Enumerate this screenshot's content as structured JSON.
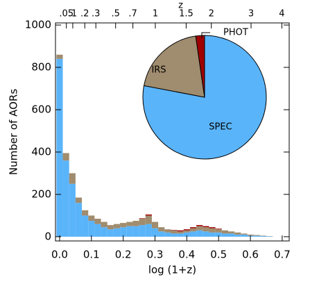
{
  "chart_data": [
    {
      "type": "histogram",
      "xlabel": "log (1+z)",
      "ylabel": "Number of AORs",
      "x2label": "z",
      "bins": [
        -0.01,
        0.01,
        0.03,
        0.05,
        0.07,
        0.09,
        0.11,
        0.13,
        0.15,
        0.17,
        0.19,
        0.21,
        0.23,
        0.25,
        0.27,
        0.29,
        0.31,
        0.33,
        0.35,
        0.37,
        0.39,
        0.41,
        0.43,
        0.45,
        0.47,
        0.49,
        0.51,
        0.53,
        0.55,
        0.57,
        0.59,
        0.61,
        0.63,
        0.65,
        0.67,
        0.69
      ],
      "stacked": true,
      "series": [
        {
          "name": "SPEC",
          "color": "#5ab4fa",
          "values": [
            840,
            360,
            250,
            160,
            100,
            75,
            60,
            45,
            35,
            40,
            45,
            50,
            50,
            55,
            60,
            40,
            25,
            20,
            15,
            15,
            20,
            25,
            30,
            25,
            20,
            20,
            15,
            15,
            10,
            10,
            5,
            5,
            3,
            2,
            0
          ]
        },
        {
          "name": "IRS",
          "color": "#a08c6e",
          "values": [
            20,
            35,
            50,
            25,
            25,
            25,
            25,
            25,
            20,
            20,
            20,
            20,
            25,
            30,
            40,
            30,
            20,
            15,
            15,
            10,
            10,
            15,
            20,
            20,
            20,
            15,
            15,
            10,
            10,
            5,
            5,
            3,
            2,
            1,
            0
          ]
        },
        {
          "name": "PHOT",
          "color": "#a00000",
          "values": [
            0,
            0,
            0,
            0,
            0,
            0,
            0,
            0,
            0,
            0,
            0,
            0,
            0,
            2,
            5,
            0,
            0,
            0,
            2,
            5,
            5,
            5,
            5,
            5,
            5,
            3,
            0,
            0,
            0,
            0,
            0,
            0,
            0,
            0,
            0
          ]
        }
      ],
      "xlim": [
        -0.013,
        0.722
      ],
      "ylim": [
        -20,
        1010
      ],
      "xticks": [
        {
          "value": 0,
          "label": "0.0"
        },
        0.1,
        0.2,
        0.3,
        0.4,
        0.5,
        0.6,
        0.7
      ],
      "yticks": [
        0,
        200,
        400,
        600,
        800,
        1000
      ],
      "x2scale": "log10(1+z)",
      "x2ticks": [
        {
          "value": 0.05,
          "label": ".05"
        },
        {
          "value": 0.1,
          "label": ".1"
        },
        {
          "value": 0.2,
          "label": ".2"
        },
        {
          "value": 0.3,
          "label": ".3"
        },
        {
          "value": 0.5,
          "label": ".5"
        },
        {
          "value": 0.7,
          "label": ".7"
        },
        1,
        1.5,
        2,
        3,
        4
      ]
    },
    {
      "type": "pie",
      "categories": [
        "SPEC",
        "IRS",
        "PHOT"
      ],
      "values": [
        78,
        19.7,
        2.3
      ],
      "colors": [
        "#5ab4fa",
        "#a08c6e",
        "#a00000"
      ]
    }
  ]
}
